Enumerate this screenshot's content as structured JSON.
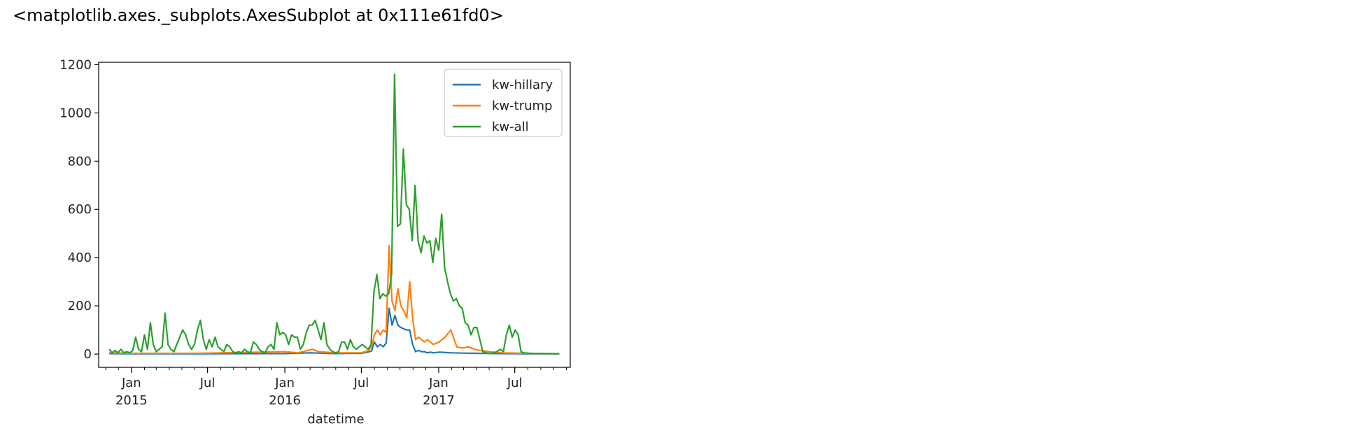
{
  "output": {
    "repr_text": "<matplotlib.axes._subplots.AxesSubplot at 0x111e61fd0>"
  },
  "chart_data": {
    "type": "line",
    "xlabel": "datetime",
    "ylabel": "",
    "ylim": [
      -55,
      1210
    ],
    "xlim": [
      "2014-10-15",
      "2017-11-10"
    ],
    "yticks": [
      0,
      200,
      400,
      600,
      800,
      1000,
      1200
    ],
    "xticks": [
      {
        "date": "2015-01-01",
        "label": "Jan",
        "sublabel": "2015"
      },
      {
        "date": "2015-07-01",
        "label": "Jul",
        "sublabel": ""
      },
      {
        "date": "2016-01-01",
        "label": "Jan",
        "sublabel": "2016"
      },
      {
        "date": "2016-07-01",
        "label": "Jul",
        "sublabel": ""
      },
      {
        "date": "2017-01-01",
        "label": "Jan",
        "sublabel": "2017"
      },
      {
        "date": "2017-07-01",
        "label": "Jul",
        "sublabel": ""
      }
    ],
    "grid": false,
    "legend_position": "top-right",
    "series": [
      {
        "name": "kw-hillary",
        "color": "#1f77b4",
        "points": [
          [
            "2014-11-09",
            2
          ],
          [
            "2015-01-01",
            1
          ],
          [
            "2015-06-01",
            1
          ],
          [
            "2016-01-01",
            2
          ],
          [
            "2016-03-01",
            5
          ],
          [
            "2016-05-01",
            2
          ],
          [
            "2016-07-01",
            3
          ],
          [
            "2016-07-25",
            12
          ],
          [
            "2016-08-01",
            50
          ],
          [
            "2016-08-08",
            30
          ],
          [
            "2016-08-15",
            40
          ],
          [
            "2016-08-22",
            30
          ],
          [
            "2016-08-29",
            45
          ],
          [
            "2016-09-05",
            190
          ],
          [
            "2016-09-12",
            120
          ],
          [
            "2016-09-19",
            160
          ],
          [
            "2016-09-26",
            120
          ],
          [
            "2016-10-03",
            110
          ],
          [
            "2016-10-10",
            105
          ],
          [
            "2016-10-17",
            100
          ],
          [
            "2016-10-24",
            100
          ],
          [
            "2016-10-31",
            40
          ],
          [
            "2016-11-07",
            10
          ],
          [
            "2016-11-14",
            15
          ],
          [
            "2016-11-21",
            10
          ],
          [
            "2016-11-28",
            10
          ],
          [
            "2016-12-05",
            5
          ],
          [
            "2016-12-12",
            8
          ],
          [
            "2016-12-19",
            5
          ],
          [
            "2017-01-02",
            8
          ],
          [
            "2017-02-01",
            5
          ],
          [
            "2017-03-01",
            4
          ],
          [
            "2017-04-01",
            3
          ],
          [
            "2017-06-01",
            2
          ],
          [
            "2017-08-01",
            1
          ],
          [
            "2017-10-15",
            1
          ]
        ]
      },
      {
        "name": "kw-trump",
        "color": "#ff7f0e",
        "points": [
          [
            "2014-11-09",
            5
          ],
          [
            "2015-01-01",
            3
          ],
          [
            "2015-06-01",
            3
          ],
          [
            "2015-07-01",
            4
          ],
          [
            "2016-01-01",
            10
          ],
          [
            "2016-02-01",
            5
          ],
          [
            "2016-03-07",
            20
          ],
          [
            "2016-03-21",
            10
          ],
          [
            "2016-05-01",
            5
          ],
          [
            "2016-07-01",
            5
          ],
          [
            "2016-07-18",
            15
          ],
          [
            "2016-07-25",
            30
          ],
          [
            "2016-08-01",
            80
          ],
          [
            "2016-08-08",
            100
          ],
          [
            "2016-08-15",
            80
          ],
          [
            "2016-08-22",
            100
          ],
          [
            "2016-08-29",
            90
          ],
          [
            "2016-09-05",
            450
          ],
          [
            "2016-09-12",
            220
          ],
          [
            "2016-09-19",
            180
          ],
          [
            "2016-09-26",
            270
          ],
          [
            "2016-10-03",
            200
          ],
          [
            "2016-10-10",
            180
          ],
          [
            "2016-10-17",
            150
          ],
          [
            "2016-10-24",
            300
          ],
          [
            "2016-10-31",
            150
          ],
          [
            "2016-11-07",
            60
          ],
          [
            "2016-11-14",
            70
          ],
          [
            "2016-11-21",
            60
          ],
          [
            "2016-11-28",
            50
          ],
          [
            "2016-12-05",
            60
          ],
          [
            "2016-12-12",
            50
          ],
          [
            "2016-12-19",
            40
          ],
          [
            "2017-01-02",
            50
          ],
          [
            "2017-01-16",
            70
          ],
          [
            "2017-01-30",
            100
          ],
          [
            "2017-02-13",
            30
          ],
          [
            "2017-02-27",
            25
          ],
          [
            "2017-03-13",
            30
          ],
          [
            "2017-03-27",
            20
          ],
          [
            "2017-04-10",
            15
          ],
          [
            "2017-05-01",
            10
          ],
          [
            "2017-06-01",
            5
          ],
          [
            "2017-08-01",
            3
          ],
          [
            "2017-10-15",
            2
          ]
        ]
      },
      {
        "name": "kw-all",
        "color": "#2ca02c",
        "points": [
          [
            "2014-11-09",
            20
          ],
          [
            "2014-11-16",
            5
          ],
          [
            "2014-11-23",
            15
          ],
          [
            "2014-11-30",
            5
          ],
          [
            "2014-12-07",
            20
          ],
          [
            "2014-12-14",
            5
          ],
          [
            "2014-12-21",
            10
          ],
          [
            "2014-12-28",
            5
          ],
          [
            "2015-01-04",
            15
          ],
          [
            "2015-01-11",
            70
          ],
          [
            "2015-01-18",
            20
          ],
          [
            "2015-01-25",
            10
          ],
          [
            "2015-02-01",
            80
          ],
          [
            "2015-02-08",
            20
          ],
          [
            "2015-02-15",
            130
          ],
          [
            "2015-02-22",
            40
          ],
          [
            "2015-03-01",
            10
          ],
          [
            "2015-03-08",
            20
          ],
          [
            "2015-03-15",
            30
          ],
          [
            "2015-03-22",
            170
          ],
          [
            "2015-03-29",
            40
          ],
          [
            "2015-04-05",
            20
          ],
          [
            "2015-04-12",
            10
          ],
          [
            "2015-04-19",
            40
          ],
          [
            "2015-04-26",
            70
          ],
          [
            "2015-05-03",
            100
          ],
          [
            "2015-05-10",
            80
          ],
          [
            "2015-05-17",
            40
          ],
          [
            "2015-05-24",
            20
          ],
          [
            "2015-05-31",
            40
          ],
          [
            "2015-06-07",
            100
          ],
          [
            "2015-06-14",
            140
          ],
          [
            "2015-06-21",
            60
          ],
          [
            "2015-06-28",
            20
          ],
          [
            "2015-07-05",
            60
          ],
          [
            "2015-07-12",
            30
          ],
          [
            "2015-07-19",
            70
          ],
          [
            "2015-07-26",
            30
          ],
          [
            "2015-08-02",
            20
          ],
          [
            "2015-08-09",
            10
          ],
          [
            "2015-08-16",
            40
          ],
          [
            "2015-08-23",
            30
          ],
          [
            "2015-08-30",
            10
          ],
          [
            "2015-09-06",
            5
          ],
          [
            "2015-09-13",
            10
          ],
          [
            "2015-09-20",
            5
          ],
          [
            "2015-09-27",
            20
          ],
          [
            "2015-10-04",
            10
          ],
          [
            "2015-10-11",
            5
          ],
          [
            "2015-10-18",
            50
          ],
          [
            "2015-10-25",
            40
          ],
          [
            "2015-11-01",
            20
          ],
          [
            "2015-11-08",
            10
          ],
          [
            "2015-11-15",
            5
          ],
          [
            "2015-11-22",
            30
          ],
          [
            "2015-11-29",
            40
          ],
          [
            "2015-12-06",
            20
          ],
          [
            "2015-12-13",
            130
          ],
          [
            "2015-12-20",
            80
          ],
          [
            "2015-12-27",
            90
          ],
          [
            "2016-01-03",
            80
          ],
          [
            "2016-01-10",
            40
          ],
          [
            "2016-01-17",
            80
          ],
          [
            "2016-01-24",
            70
          ],
          [
            "2016-01-31",
            70
          ],
          [
            "2016-02-07",
            20
          ],
          [
            "2016-02-14",
            40
          ],
          [
            "2016-02-21",
            90
          ],
          [
            "2016-02-28",
            120
          ],
          [
            "2016-03-06",
            120
          ],
          [
            "2016-03-13",
            140
          ],
          [
            "2016-03-20",
            100
          ],
          [
            "2016-03-27",
            60
          ],
          [
            "2016-04-03",
            130
          ],
          [
            "2016-04-10",
            40
          ],
          [
            "2016-04-17",
            20
          ],
          [
            "2016-04-24",
            10
          ],
          [
            "2016-05-01",
            5
          ],
          [
            "2016-05-08",
            10
          ],
          [
            "2016-05-15",
            50
          ],
          [
            "2016-05-22",
            50
          ],
          [
            "2016-05-29",
            20
          ],
          [
            "2016-06-05",
            60
          ],
          [
            "2016-06-12",
            30
          ],
          [
            "2016-06-19",
            20
          ],
          [
            "2016-06-26",
            30
          ],
          [
            "2016-07-03",
            40
          ],
          [
            "2016-07-10",
            30
          ],
          [
            "2016-07-17",
            20
          ],
          [
            "2016-07-24",
            40
          ],
          [
            "2016-07-31",
            260
          ],
          [
            "2016-08-07",
            330
          ],
          [
            "2016-08-14",
            230
          ],
          [
            "2016-08-21",
            250
          ],
          [
            "2016-08-28",
            240
          ],
          [
            "2016-09-04",
            250
          ],
          [
            "2016-09-11",
            330
          ],
          [
            "2016-09-18",
            1160
          ],
          [
            "2016-09-25",
            530
          ],
          [
            "2016-10-02",
            540
          ],
          [
            "2016-10-09",
            850
          ],
          [
            "2016-10-16",
            620
          ],
          [
            "2016-10-23",
            600
          ],
          [
            "2016-10-30",
            470
          ],
          [
            "2016-11-06",
            700
          ],
          [
            "2016-11-13",
            470
          ],
          [
            "2016-11-20",
            420
          ],
          [
            "2016-11-27",
            490
          ],
          [
            "2016-12-04",
            460
          ],
          [
            "2016-12-11",
            470
          ],
          [
            "2016-12-18",
            380
          ],
          [
            "2016-12-25",
            480
          ],
          [
            "2017-01-01",
            430
          ],
          [
            "2017-01-08",
            580
          ],
          [
            "2017-01-15",
            360
          ],
          [
            "2017-01-22",
            300
          ],
          [
            "2017-01-29",
            250
          ],
          [
            "2017-02-05",
            220
          ],
          [
            "2017-02-12",
            230
          ],
          [
            "2017-02-19",
            200
          ],
          [
            "2017-02-26",
            190
          ],
          [
            "2017-03-05",
            130
          ],
          [
            "2017-03-12",
            120
          ],
          [
            "2017-03-19",
            80
          ],
          [
            "2017-03-26",
            110
          ],
          [
            "2017-04-02",
            110
          ],
          [
            "2017-04-09",
            60
          ],
          [
            "2017-04-16",
            10
          ],
          [
            "2017-04-23",
            5
          ],
          [
            "2017-04-30",
            3
          ],
          [
            "2017-05-14",
            5
          ],
          [
            "2017-05-28",
            20
          ],
          [
            "2017-06-04",
            10
          ],
          [
            "2017-06-11",
            80
          ],
          [
            "2017-06-18",
            120
          ],
          [
            "2017-06-25",
            70
          ],
          [
            "2017-07-02",
            100
          ],
          [
            "2017-07-09",
            80
          ],
          [
            "2017-07-16",
            10
          ],
          [
            "2017-07-23",
            5
          ],
          [
            "2017-08-06",
            3
          ],
          [
            "2017-09-01",
            2
          ],
          [
            "2017-10-15",
            1
          ]
        ]
      }
    ]
  }
}
